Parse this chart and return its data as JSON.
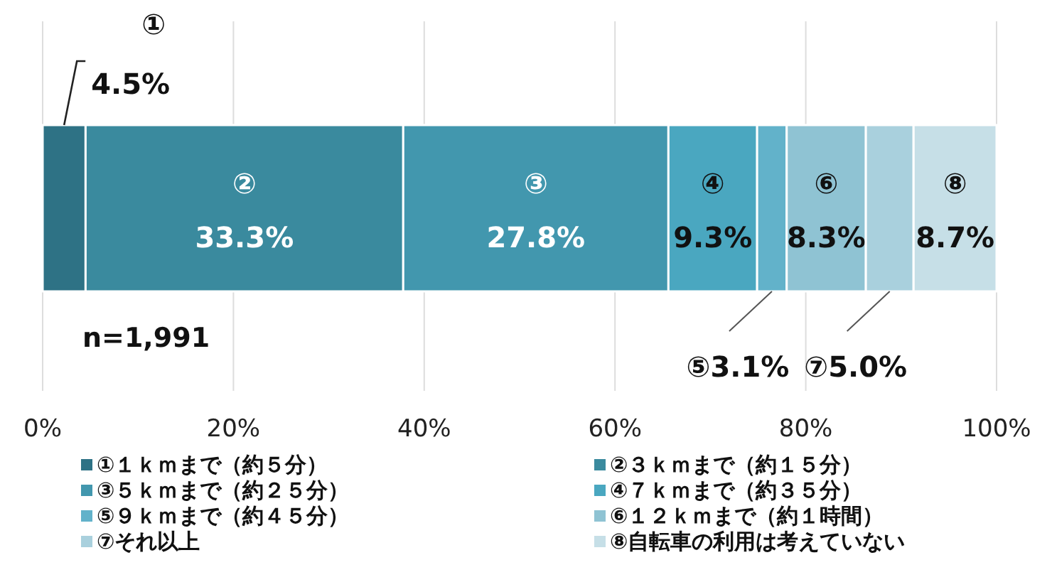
{
  "chart_data": {
    "type": "bar",
    "orientation": "horizontal",
    "stacked": true,
    "categories": [
      null
    ],
    "series": [
      {
        "name": "①１ｋｍまで（約５分）",
        "color": "#2e7285",
        "values": [
          4.5
        ],
        "value_labels": [
          "① 4.5%"
        ]
      },
      {
        "name": "②３ｋｍまで（約１５分）",
        "color": "#3a8a9e",
        "values": [
          33.3
        ],
        "value_labels": [
          "② 33.3%"
        ]
      },
      {
        "name": "③５ｋｍまで（約２５分）",
        "color": "#4297ae",
        "values": [
          27.8
        ],
        "value_labels": [
          "③ 27.8%"
        ]
      },
      {
        "name": "④７ｋｍまで（約３５分）",
        "color": "#4aa7c0",
        "values": [
          9.3
        ],
        "value_labels": [
          "④ 9.3%"
        ]
      },
      {
        "name": "⑤９ｋｍまで（約４５分）",
        "color": "#62b2ca",
        "values": [
          3.1
        ],
        "value_labels": [
          "⑤3.1%"
        ]
      },
      {
        "name": "⑥１２ｋｍまで（約１時間）",
        "color": "#8fc3d3",
        "values": [
          8.3
        ],
        "value_labels": [
          "⑥ 8.3%"
        ]
      },
      {
        "name": "⑦それ以上",
        "color": "#a9d0dd",
        "values": [
          5.0
        ],
        "value_labels": [
          "⑦5.0%"
        ]
      },
      {
        "name": "⑧自転車の利用は考えていない",
        "color": "#c6dfe7",
        "values": [
          8.7
        ],
        "value_labels": [
          "⑧ 8.7%"
        ]
      }
    ],
    "xlim": [
      0,
      100
    ],
    "xticks": [
      {
        "value": 0,
        "label": "0%"
      },
      {
        "value": 20,
        "label": "20%"
      },
      {
        "value": 40,
        "label": "40%"
      },
      {
        "value": 60,
        "label": "60%"
      },
      {
        "value": 80,
        "label": "80%"
      },
      {
        "value": 100,
        "label": "100%"
      }
    ],
    "grid": "x",
    "legend": "bottom",
    "annotations": [
      "n=1,991"
    ]
  }
}
